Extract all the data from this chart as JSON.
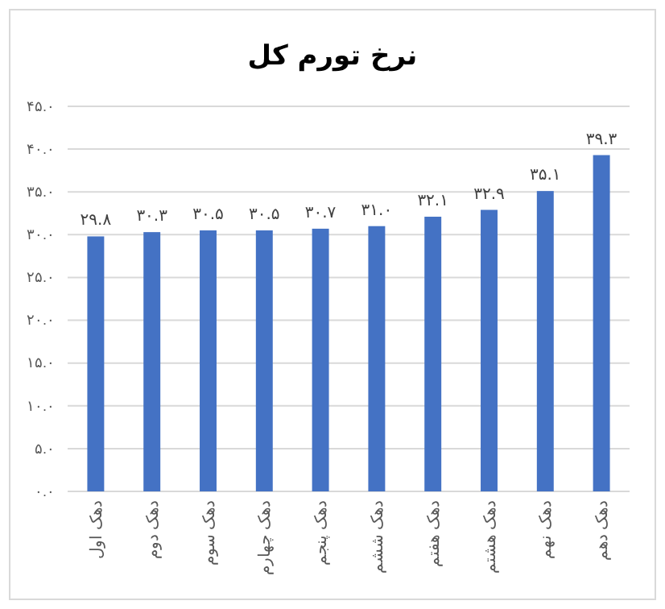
{
  "chart_data": {
    "type": "bar",
    "title": "نرخ تورم کل",
    "categories": [
      "دهک اول",
      "دهک دوم",
      "دهک سوم",
      "دهک چهارم",
      "دهک پنجم",
      "دهک ششم",
      "دهک هفتم",
      "دهک هشتم",
      "دهک نهم",
      "دهک دهم"
    ],
    "values": [
      29.8,
      30.3,
      30.5,
      30.5,
      30.7,
      31.0,
      32.1,
      32.9,
      35.1,
      39.3
    ],
    "value_labels": [
      "۲۹.۸",
      "۳۰.۳",
      "۳۰.۵",
      "۳۰.۵",
      "۳۰.۷",
      "۳۱.۰",
      "۳۲.۱",
      "۳۲.۹",
      "۳۵.۱",
      "۳۹.۳"
    ],
    "color": "#4472c4",
    "ylim": [
      0,
      45
    ],
    "yticks": [
      {
        "value": 0,
        "label": "۰.۰"
      },
      {
        "value": 5,
        "label": "۵.۰"
      },
      {
        "value": 10,
        "label": "۱۰.۰"
      },
      {
        "value": 15,
        "label": "۱۵.۰"
      },
      {
        "value": 20,
        "label": "۲۰.۰"
      },
      {
        "value": 25,
        "label": "۲۵.۰"
      },
      {
        "value": 30,
        "label": "۳۰.۰"
      },
      {
        "value": 35,
        "label": "۳۵.۰"
      },
      {
        "value": 40,
        "label": "۴۰.۰"
      },
      {
        "value": 45,
        "label": "۴۵.۰"
      }
    ],
    "grid": "y"
  }
}
